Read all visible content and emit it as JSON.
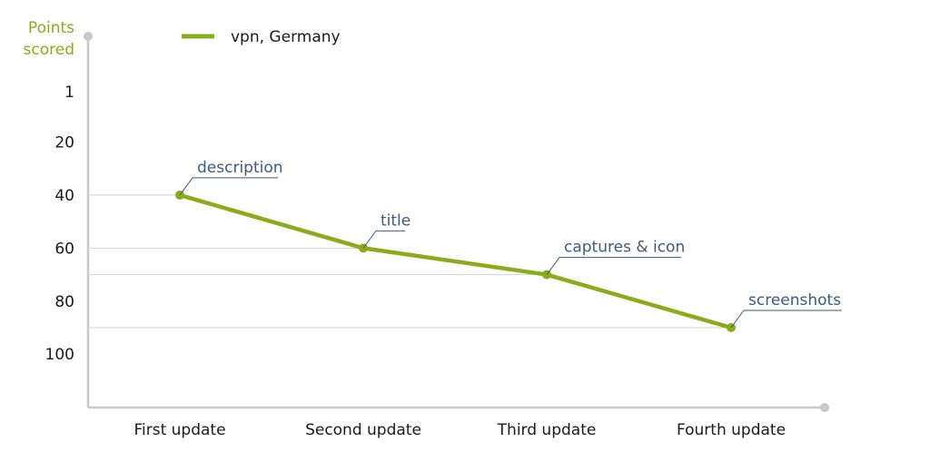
{
  "chart_data": {
    "type": "line",
    "ylabel": [
      "Points",
      "scored"
    ],
    "xlabel": "",
    "y_ticks": [
      1,
      20,
      40,
      60,
      80,
      100
    ],
    "ylim": [
      120,
      -10
    ],
    "y_inverted": true,
    "categories": [
      "First update",
      "Second update",
      "Third update",
      "Fourth update"
    ],
    "series": [
      {
        "name": "vpn, Germany",
        "values": [
          40,
          60,
          70,
          90
        ],
        "annotations": [
          "description",
          "title",
          "captures & icon",
          "screenshots"
        ]
      }
    ],
    "legend_position": "top-left",
    "colors": {
      "series": "#8aac1a",
      "ylabel": "#8aac1a",
      "axis": "#c8c8c8",
      "gridline": "#d2d2d2",
      "annotation": "#3d5a80"
    }
  }
}
